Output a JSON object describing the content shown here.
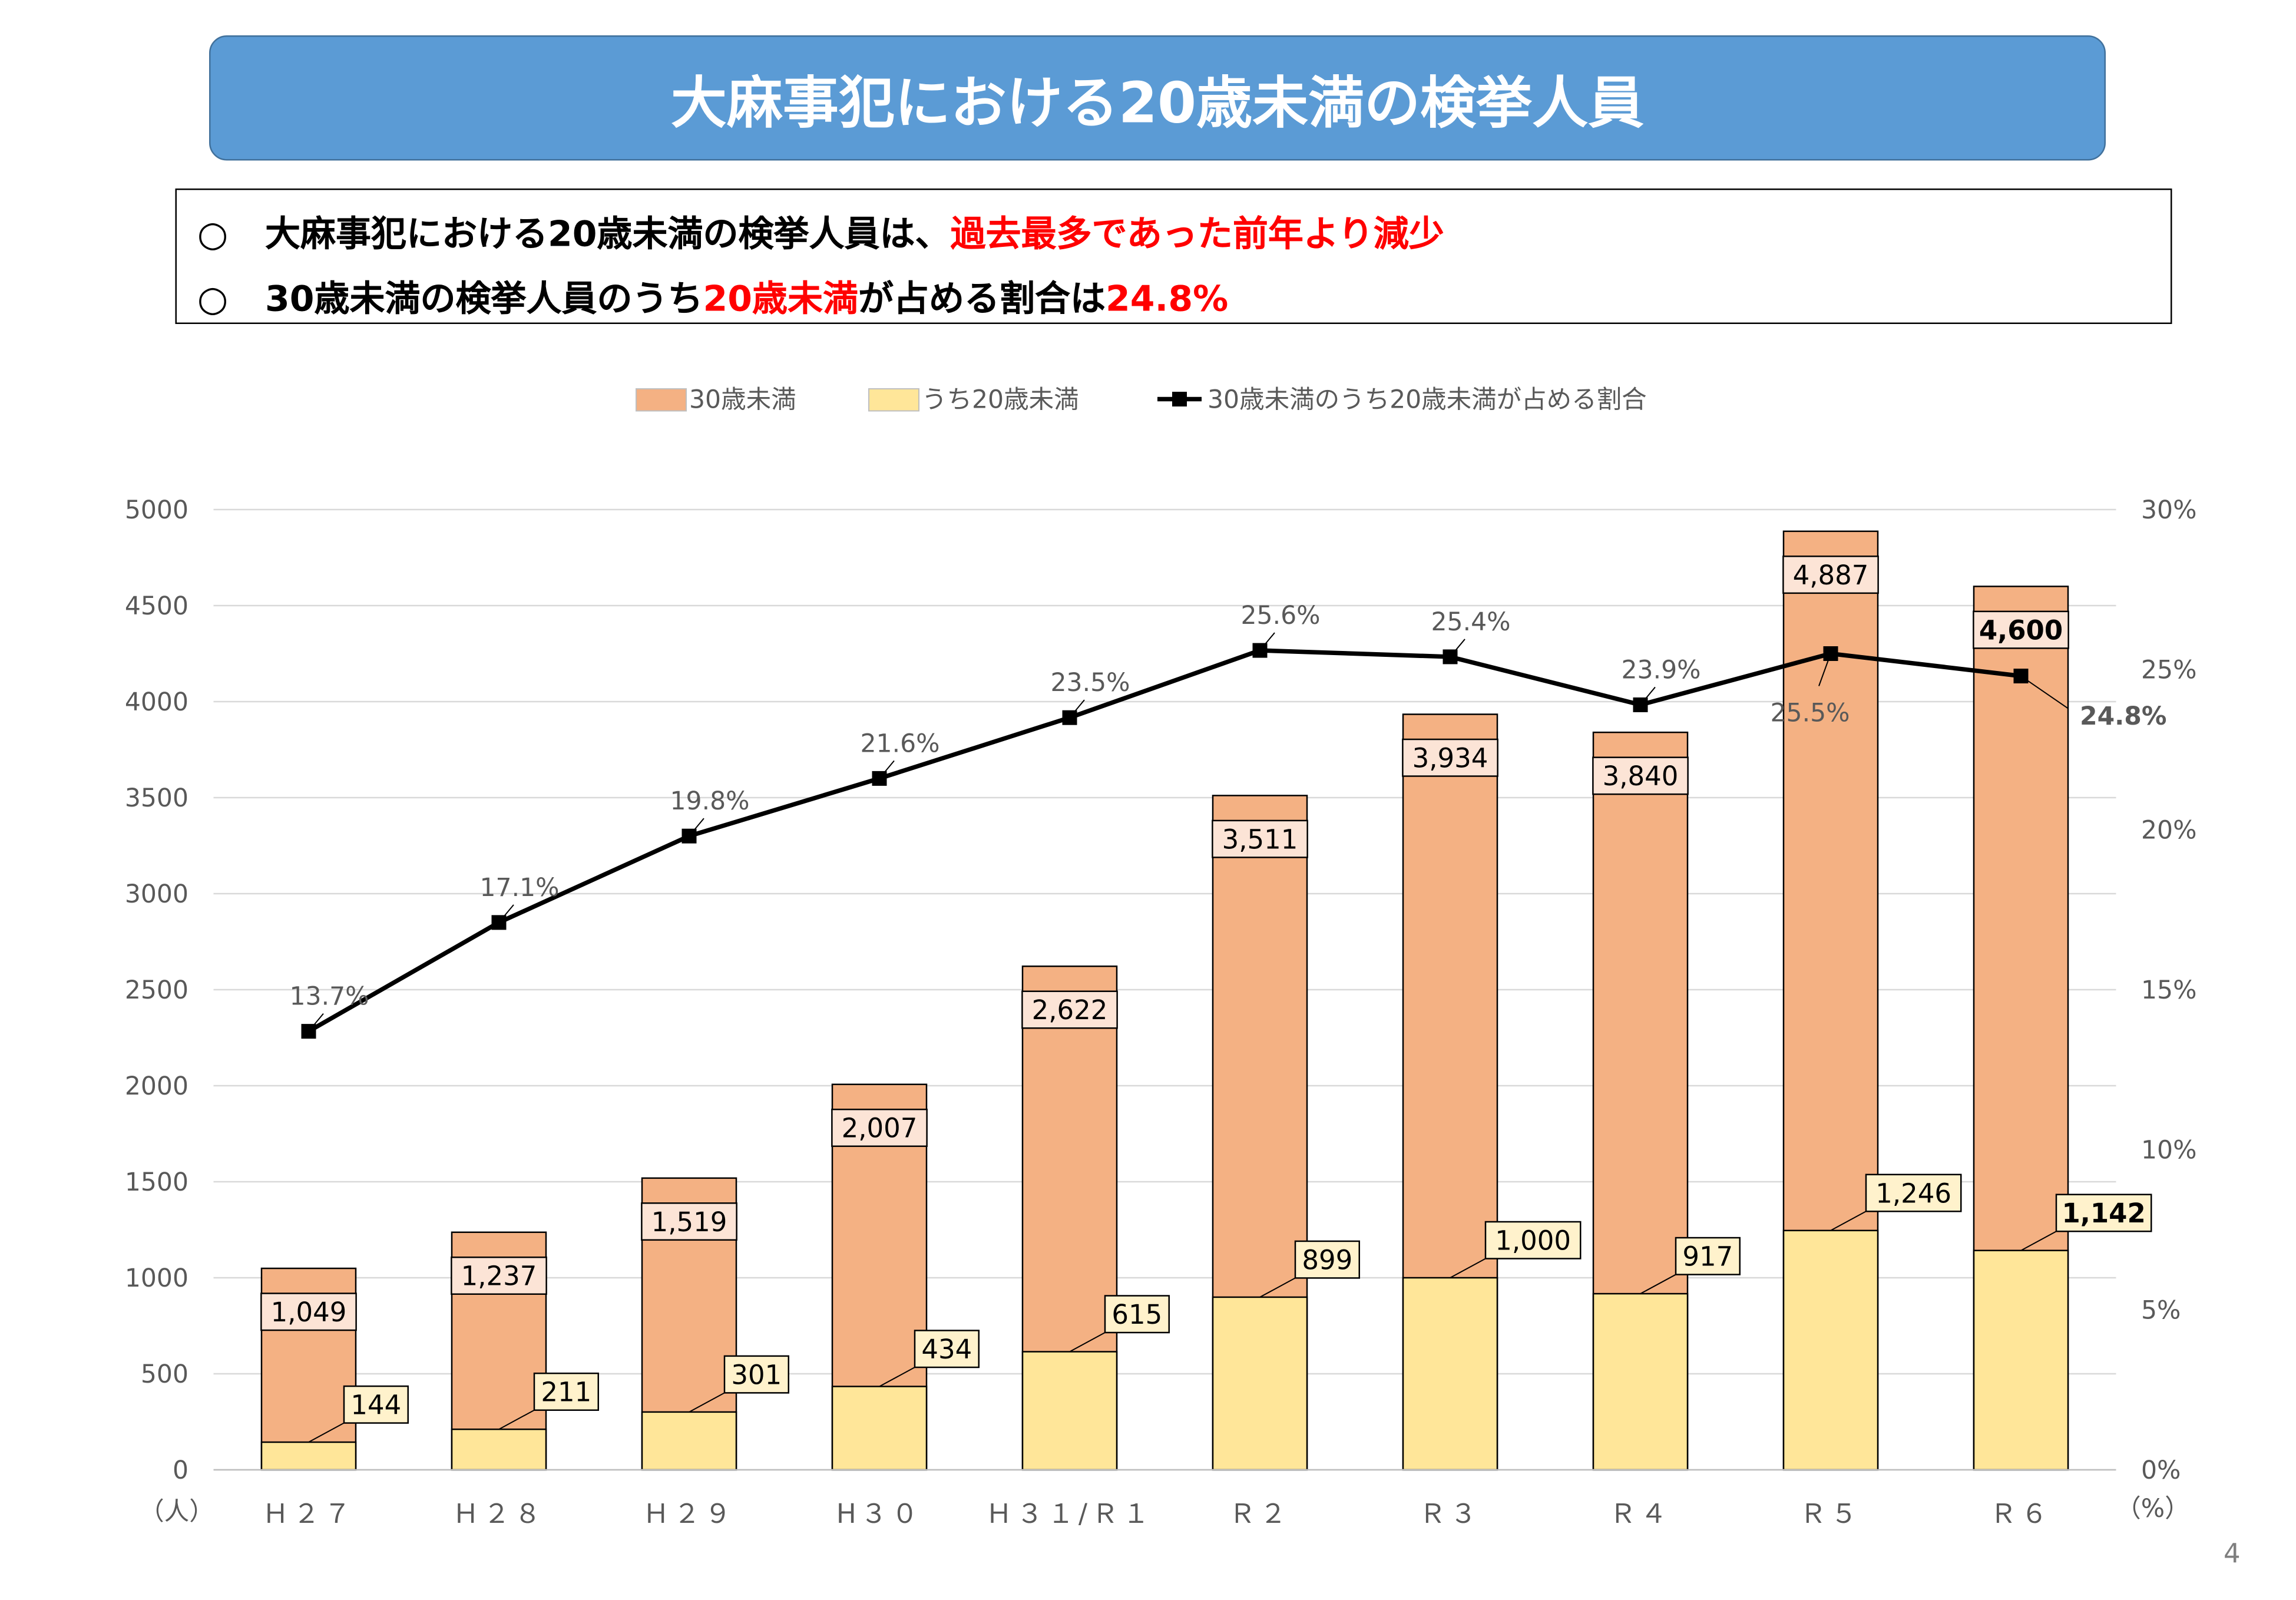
{
  "title": "大麻事犯における20歳未満の検挙人員",
  "summary": {
    "line1": {
      "mark": "○",
      "text": "大麻事犯における20歳未満の検挙人員は、",
      "highlight": "過去最多であった前年より減少"
    },
    "line2": {
      "mark": "○",
      "prefix": "30歳未満の検挙人員のうち",
      "highlight1": "20歳未満",
      "middle": "が占める割合は",
      "highlight2": "24.8%"
    }
  },
  "colors": {
    "banner": "#5b9bd5",
    "under30": "#f4b183",
    "under20": "#ffe699",
    "line": "#000000",
    "highlight": "#ff0000"
  },
  "chart_data": {
    "type": "bar",
    "categories": [
      "Ｈ２７",
      "Ｈ２８",
      "Ｈ２９",
      "H３０",
      "Ｈ３１/Ｒ１",
      "Ｒ２",
      "Ｒ３",
      "Ｒ４",
      "Ｒ５",
      "Ｒ６"
    ],
    "series": [
      {
        "name": "30歳未満",
        "type": "bar",
        "axis": "left",
        "values": [
          1049,
          1237,
          1519,
          2007,
          2622,
          3511,
          3934,
          3840,
          4887,
          4600
        ],
        "labels": [
          "1,049",
          "1,237",
          "1,519",
          "2,007",
          "2,622",
          "3,511",
          "3,934",
          "3,840",
          "4,887",
          "4,600"
        ]
      },
      {
        "name": "うち20歳未満",
        "type": "bar",
        "axis": "left",
        "values": [
          144,
          211,
          301,
          434,
          615,
          899,
          1000,
          917,
          1246,
          1142
        ],
        "labels": [
          "144",
          "211",
          "301",
          "434",
          "615",
          "899",
          "1,000",
          "917",
          "1,246",
          "1,142"
        ]
      },
      {
        "name": "30歳未満のうち20歳未満が占める割合",
        "type": "line",
        "axis": "right",
        "values": [
          13.7,
          17.1,
          19.8,
          21.6,
          23.5,
          25.6,
          25.4,
          23.9,
          25.5,
          24.8
        ],
        "labels": [
          "13.7%",
          "17.1%",
          "19.8%",
          "21.6%",
          "23.5%",
          "25.6%",
          "25.4%",
          "23.9%",
          "25.5%",
          "24.8%"
        ]
      }
    ],
    "left_axis": {
      "min": 0,
      "max": 5000,
      "step": 500,
      "unit": "（人）",
      "ticks": [
        "0",
        "500",
        "1000",
        "1500",
        "2000",
        "2500",
        "3000",
        "3500",
        "4000",
        "4500",
        "5000"
      ]
    },
    "right_axis": {
      "min": 0,
      "max": 30,
      "step": 5,
      "unit": "（%）",
      "ticks": [
        "0%",
        "5%",
        "10%",
        "15%",
        "20%",
        "25%",
        "30%"
      ]
    },
    "legend_position": "top",
    "grid": true
  },
  "page_number": "4"
}
